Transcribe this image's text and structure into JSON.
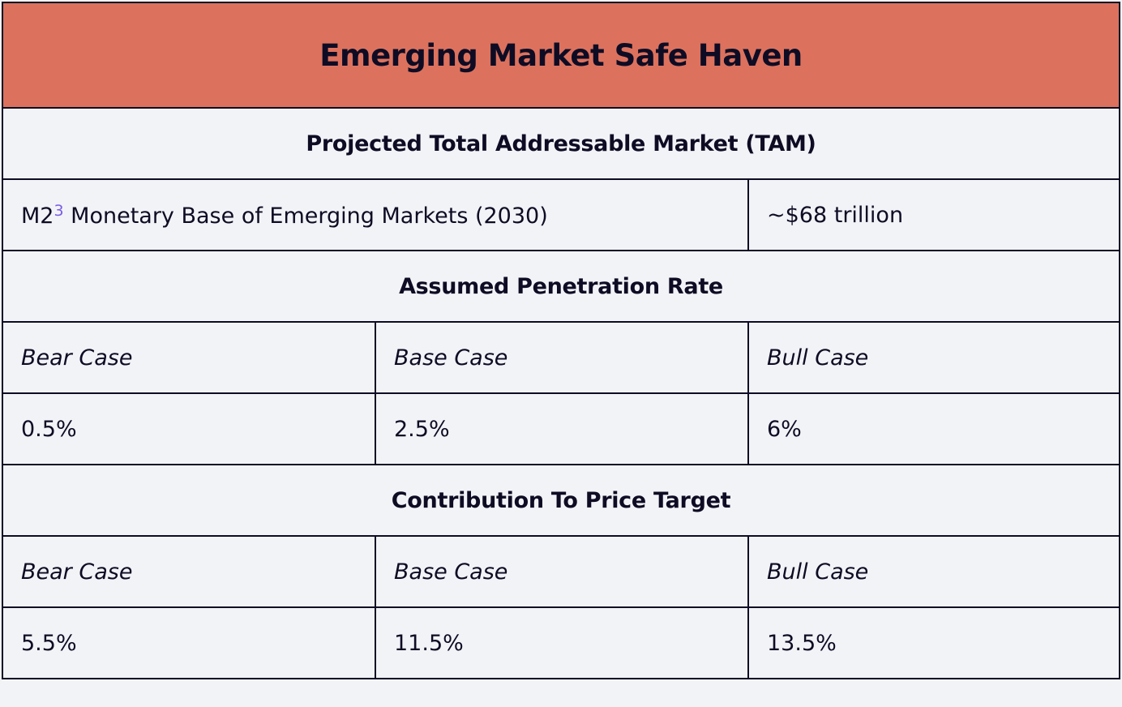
{
  "title": "Emerging Market Safe Haven",
  "colors": {
    "header_bg": "#dc725e",
    "cell_bg": "#f2f3f7",
    "border": "#0e0c24",
    "footnote": "#7b5ce6"
  },
  "tam": {
    "heading": "Projected Total Addressable Market (TAM)",
    "label_prefix": "M2",
    "footnote_ref": "3",
    "label_suffix": " Monetary Base of Emerging Markets (2030)",
    "value": "~$68 trillion"
  },
  "penetration": {
    "heading": "Assumed Penetration Rate",
    "cases": [
      "Bear Case",
      "Base Case",
      "Bull Case"
    ],
    "values": [
      "0.5%",
      "2.5%",
      "6%"
    ]
  },
  "contribution": {
    "heading": "Contribution To Price Target",
    "cases": [
      "Bear Case",
      "Base Case",
      "Bull Case"
    ],
    "values": [
      "5.5%",
      "11.5%",
      "13.5%"
    ]
  }
}
